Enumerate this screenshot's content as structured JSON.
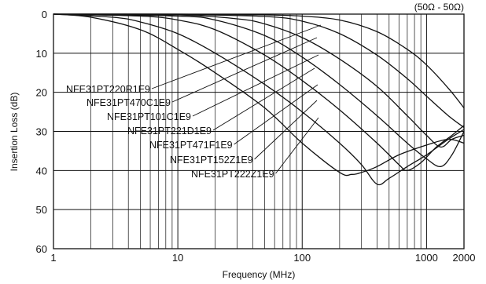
{
  "chart_data": {
    "type": "line",
    "title": "",
    "subtitle": "(50Ω - 50Ω)",
    "xlabel": "Frequency (MHz)",
    "ylabel": "Insertion Loss (dB)",
    "x_scale": "log",
    "xlim": [
      1,
      2000
    ],
    "ylim": [
      0,
      60
    ],
    "y_inverted": true,
    "grid": true,
    "x_ticks": [
      1,
      10,
      100,
      1000,
      2000
    ],
    "x_tick_labels": [
      "1",
      "10",
      "100",
      "1000",
      "2000"
    ],
    "y_ticks": [
      0,
      10,
      20,
      30,
      40,
      50,
      60
    ],
    "y_tick_labels": [
      "0",
      "10",
      "20",
      "30",
      "40",
      "50",
      "60"
    ],
    "series": [
      {
        "name": "NFE31PT220R1E9",
        "points": [
          [
            1,
            0
          ],
          [
            10,
            0
          ],
          [
            50,
            0.2
          ],
          [
            100,
            0.5
          ],
          [
            200,
            1.5
          ],
          [
            400,
            4.5
          ],
          [
            700,
            9
          ],
          [
            1000,
            13
          ],
          [
            1500,
            19
          ],
          [
            2000,
            24
          ]
        ]
      },
      {
        "name": "NFE31PT470C1E9",
        "points": [
          [
            1,
            0
          ],
          [
            10,
            0.1
          ],
          [
            50,
            0.6
          ],
          [
            100,
            1.8
          ],
          [
            200,
            5
          ],
          [
            400,
            10.5
          ],
          [
            700,
            16.5
          ],
          [
            1000,
            21
          ],
          [
            1500,
            26
          ],
          [
            2000,
            29
          ]
        ]
      },
      {
        "name": "NFE31PT101C1E9",
        "points": [
          [
            1,
            0
          ],
          [
            10,
            0.2
          ],
          [
            30,
            1.2
          ],
          [
            50,
            2.5
          ],
          [
            100,
            6
          ],
          [
            200,
            11.5
          ],
          [
            400,
            18.5
          ],
          [
            700,
            26
          ],
          [
            1000,
            31
          ],
          [
            1300,
            34
          ],
          [
            1600,
            32
          ],
          [
            2000,
            31
          ]
        ]
      },
      {
        "name": "NFE31PT221D1E9",
        "points": [
          [
            1,
            0
          ],
          [
            10,
            0.5
          ],
          [
            20,
            1.5
          ],
          [
            50,
            5.5
          ],
          [
            100,
            11
          ],
          [
            200,
            18
          ],
          [
            400,
            26
          ],
          [
            700,
            33
          ],
          [
            1000,
            37
          ],
          [
            1300,
            39
          ],
          [
            1600,
            36
          ],
          [
            2000,
            30
          ]
        ]
      },
      {
        "name": "NFE31PT471F1E9",
        "points": [
          [
            1,
            0
          ],
          [
            5,
            0.5
          ],
          [
            10,
            1.5
          ],
          [
            20,
            4
          ],
          [
            50,
            10.5
          ],
          [
            100,
            17
          ],
          [
            200,
            24.5
          ],
          [
            400,
            33
          ],
          [
            600,
            38.5
          ],
          [
            700,
            40
          ],
          [
            900,
            38
          ],
          [
            1200,
            34
          ],
          [
            1600,
            31
          ],
          [
            2000,
            28.5
          ]
        ]
      },
      {
        "name": "NFE31PT152Z1E9",
        "points": [
          [
            1,
            0
          ],
          [
            3,
            0.8
          ],
          [
            5,
            2
          ],
          [
            10,
            5
          ],
          [
            20,
            10
          ],
          [
            50,
            18
          ],
          [
            100,
            25
          ],
          [
            200,
            33
          ],
          [
            300,
            38.5
          ],
          [
            400,
            43.5
          ],
          [
            500,
            42
          ],
          [
            700,
            39
          ],
          [
            1000,
            36
          ],
          [
            1500,
            32
          ],
          [
            2000,
            29.5
          ]
        ]
      },
      {
        "name": "NFE31PT222Z1E9",
        "points": [
          [
            1,
            0
          ],
          [
            2,
            0.8
          ],
          [
            5,
            4
          ],
          [
            10,
            9
          ],
          [
            20,
            15
          ],
          [
            50,
            24
          ],
          [
            100,
            33
          ],
          [
            200,
            40.5
          ],
          [
            250,
            41
          ],
          [
            300,
            40.5
          ],
          [
            400,
            39
          ],
          [
            600,
            36
          ],
          [
            1000,
            33.5
          ],
          [
            1500,
            32
          ],
          [
            2000,
            33
          ]
        ]
      }
    ],
    "label_texts": [
      "NFE31PT220R1E9",
      "NFE31PT470C1E9",
      "NFE31PT101C1E9",
      "NFE31PT221D1E9",
      "NFE31PT471F1E9",
      "NFE31PT152Z1E9",
      "NFE31PT222Z1E9"
    ]
  }
}
